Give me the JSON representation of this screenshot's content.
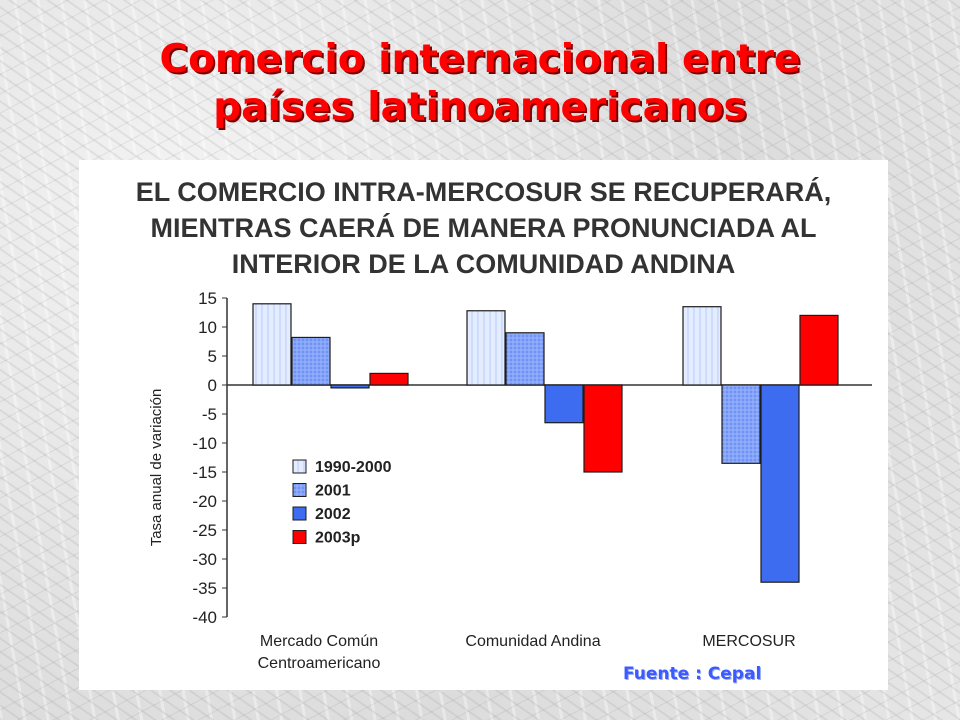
{
  "slide": {
    "title_line1": "Comercio internacional entre",
    "title_line2": "países latinoamericanos",
    "source": "Fuente : Cepal"
  },
  "chart_data": {
    "type": "bar",
    "title_lines": [
      "EL COMERCIO INTRA-MERCOSUR SE RECUPERARÁ,",
      "MIENTRAS CAERÁ DE MANERA PRONUNCIADA AL",
      "INTERIOR DE LA COMUNIDAD ANDINA"
    ],
    "ylabel": "Tasa anual de variación",
    "xlabel": "",
    "ylim": [
      -40,
      15
    ],
    "yticks": [
      15,
      10,
      5,
      0,
      -5,
      -10,
      -15,
      -20,
      -25,
      -30,
      -35,
      -40
    ],
    "categories": [
      [
        "Mercado Común",
        "Centroamericano"
      ],
      [
        "Comunidad Andina"
      ],
      [
        "MERCOSUR"
      ]
    ],
    "series": [
      {
        "name": "1990-2000",
        "color": "#dde8ff",
        "pattern": "light",
        "values": [
          14,
          12.8,
          13.5
        ]
      },
      {
        "name": "2001",
        "color": "#6f93f5",
        "pattern": "hatch",
        "values": [
          8.2,
          9,
          -13.5
        ]
      },
      {
        "name": "2002",
        "color": "#3d6cf0",
        "pattern": "solid",
        "values": [
          -0.5,
          -6.5,
          -34
        ]
      },
      {
        "name": "2003p",
        "color": "#ff0000",
        "pattern": "solid",
        "values": [
          2,
          -15,
          12
        ]
      }
    ],
    "legend_position": "lower-left",
    "grid": false
  }
}
